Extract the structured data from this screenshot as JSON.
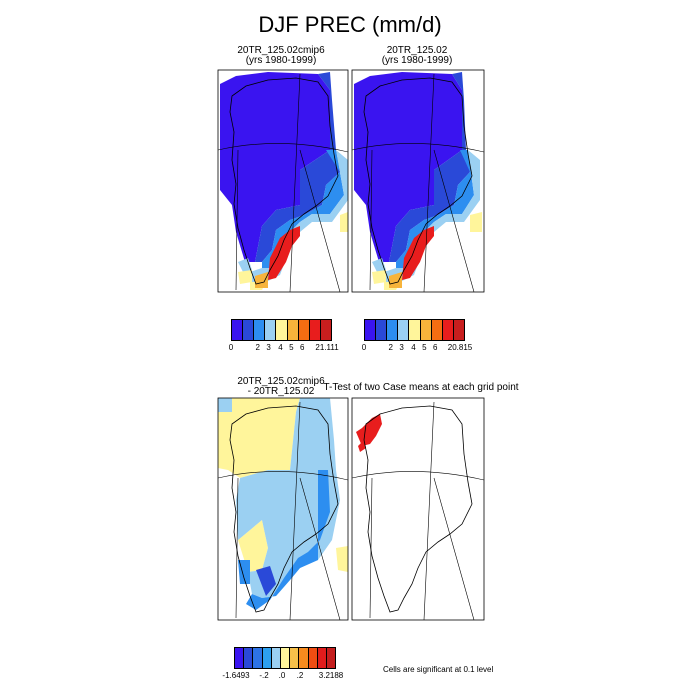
{
  "title": "DJF PREC (mm/d)",
  "panels": {
    "top_left": {
      "line1": "20TR_125.02cmip6",
      "line2": "(yrs 1980-1999)"
    },
    "top_right": {
      "line1": "20TR_125.02",
      "line2": "(yrs 1980-1999)"
    },
    "bottom_left": {
      "line1": "20TR_125.02cmip6",
      "line2": "- 20TR_125.02"
    },
    "bottom_right": {
      "line1": "T-Test of two Case means at each grid point"
    }
  },
  "legends": {
    "top_left": {
      "colors": [
        "#3a14f0",
        "#2a49d8",
        "#2d8ef0",
        "#9bd0f2",
        "#fff59b",
        "#f7b43b",
        "#f46d12",
        "#e81d1d",
        "#c81e1e"
      ],
      "ticks": [
        "0",
        "2",
        "3",
        "4",
        "5",
        "6",
        "21.111"
      ]
    },
    "top_right": {
      "colors": [
        "#3a14f0",
        "#2a49d8",
        "#2d8ef0",
        "#9bd0f2",
        "#fff59b",
        "#f7b43b",
        "#f46d12",
        "#e81d1d",
        "#c81e1e"
      ],
      "ticks": [
        "0",
        "2",
        "3",
        "4",
        "5",
        "6",
        "20.815"
      ]
    },
    "bottom_left": {
      "colors": [
        "#3a14f0",
        "#2a49d8",
        "#2d73e6",
        "#2da0f0",
        "#9bd0f2",
        "#fff59b",
        "#f7c04a",
        "#f78b1e",
        "#f04d12",
        "#e01c1c",
        "#c41e1e"
      ],
      "ticks": [
        "-1.6493",
        "-.2",
        ".0",
        ".2",
        "3.2188"
      ]
    }
  },
  "significance_note": "Cells are significant at 0.1 level",
  "colors": {
    "dark_blue": "#3a14f0",
    "mid_blue": "#2a49d8",
    "blue": "#2d8ef0",
    "light_blue": "#9bd0f2",
    "yellow": "#fff59b",
    "orange": "#f7b43b",
    "red": "#e81d1d",
    "significant": "#e81d1d"
  }
}
